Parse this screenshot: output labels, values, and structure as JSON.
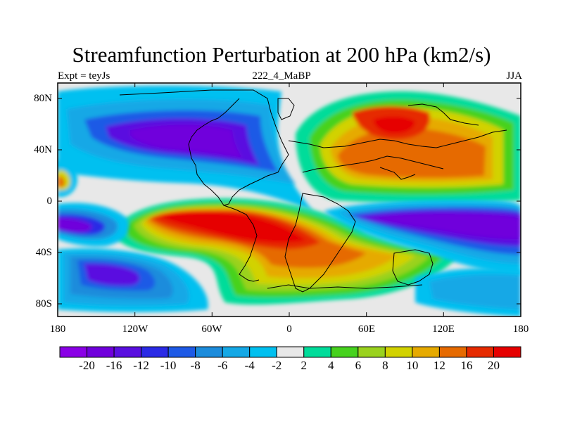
{
  "title": "Streamfunction Perturbation at 200 hPa (km2/s)",
  "subtitle_left": "Expt = teyJs",
  "subtitle_center": "222_4_MaBP",
  "subtitle_right": "JJA",
  "lat_ticks": [
    "80N",
    "40N",
    "0",
    "40S",
    "80S"
  ],
  "lon_ticks": [
    "180",
    "120W",
    "60W",
    "0",
    "60E",
    "120E",
    "180"
  ],
  "colorbar": {
    "labels": [
      "-20",
      "-16",
      "-12",
      "-10",
      "-8",
      "-6",
      "-4",
      "-2",
      "2",
      "4",
      "6",
      "8",
      "10",
      "12",
      "16",
      "20"
    ],
    "colors": [
      "#8a00e6",
      "#7000dc",
      "#5a0fe0",
      "#2a2ae6",
      "#1e5ae6",
      "#1c8cdc",
      "#14a8e6",
      "#00c0f0",
      "#e8e8e8",
      "#00dc9a",
      "#46d21e",
      "#9ad21e",
      "#d2d200",
      "#e6aa00",
      "#e66a00",
      "#e62a00",
      "#e60000"
    ]
  },
  "colors": {
    "land_fill": "#e8e8e8",
    "coast_line": "#000000"
  }
}
